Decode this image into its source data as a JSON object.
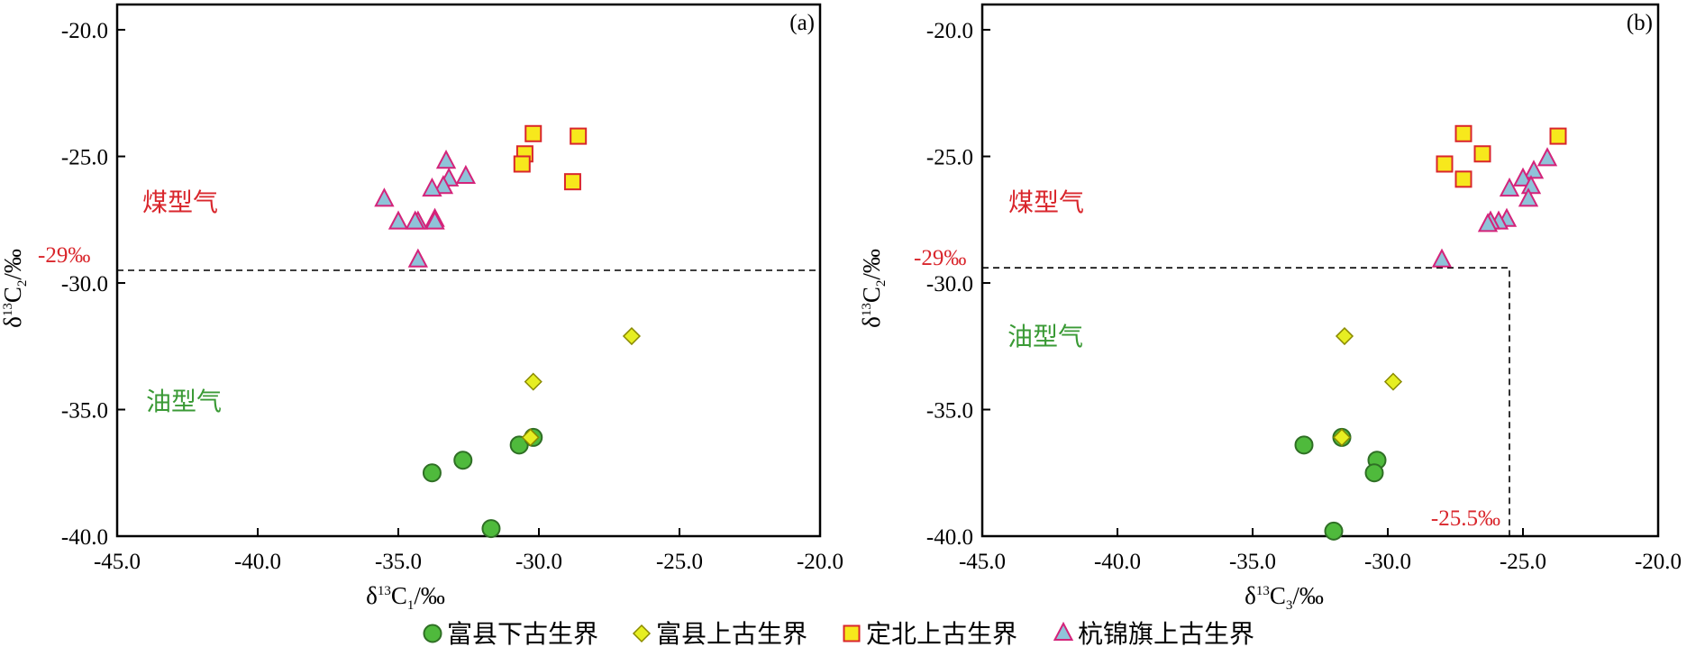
{
  "colors": {
    "axis": "#000000",
    "coal_label": "#d9262c",
    "oil_label": "#3a9a35",
    "threshold_label": "#d9262c",
    "circle_fill": "#4fba3c",
    "circle_stroke": "#2f6f25",
    "diamond_fill": "#e6ee22",
    "diamond_stroke": "#8a8a00",
    "square_fill": "#f7e81c",
    "square_stroke": "#d9262c",
    "triangle_fill": "#8fc3d9",
    "triangle_stroke": "#d4237a"
  },
  "legend": [
    {
      "key": "fx_lower",
      "label": "富县下古生界",
      "marker": "circle"
    },
    {
      "key": "fx_upper",
      "label": "富县上古生界",
      "marker": "diamond"
    },
    {
      "key": "db_upper",
      "label": "定北上古生界",
      "marker": "square"
    },
    {
      "key": "hjq_upper",
      "label": "杭锦旗上古生界",
      "marker": "triangle"
    }
  ],
  "chart_data": [
    {
      "type": "scatter",
      "panel_label": "(a)",
      "xlabel": {
        "delta": "δ",
        "sup": "13",
        "base": "C",
        "sub": "1",
        "unit": "/‰"
      },
      "ylabel": {
        "delta": "δ",
        "sup": "13",
        "base": "C",
        "sub": "2",
        "unit": "/‰"
      },
      "xlim": [
        -45,
        -20
      ],
      "ylim": [
        -40,
        -19
      ],
      "xticks": [
        -45,
        -40,
        -35,
        -30,
        -25,
        -20
      ],
      "xtick_labels": [
        "-45.0",
        "-40.0",
        "-35.0",
        "-30.0",
        "-25.0",
        "-20.0"
      ],
      "yticks": [
        -20,
        -25,
        -30,
        -35,
        -40
      ],
      "ytick_labels": [
        "-20.0",
        "-25.0",
        "-30.0",
        "-35.0",
        "-40.0"
      ],
      "threshold": {
        "y": -29.5,
        "label": "-29‰"
      },
      "region_labels": {
        "coal": "煤型气",
        "oil": "油型气"
      },
      "series": [
        {
          "key": "fx_lower",
          "points": [
            [
              -33.8,
              -37.5
            ],
            [
              -32.7,
              -37.0
            ],
            [
              -30.7,
              -36.4
            ],
            [
              -30.2,
              -36.1
            ],
            [
              -31.7,
              -39.7
            ]
          ]
        },
        {
          "key": "fx_upper",
          "points": [
            [
              -26.7,
              -32.1
            ],
            [
              -30.2,
              -33.9
            ],
            [
              -30.3,
              -36.1
            ]
          ]
        },
        {
          "key": "db_upper",
          "points": [
            [
              -30.2,
              -24.1
            ],
            [
              -28.6,
              -24.2
            ],
            [
              -30.5,
              -24.9
            ],
            [
              -30.6,
              -25.3
            ],
            [
              -28.8,
              -26.0
            ]
          ]
        },
        {
          "key": "hjq_upper",
          "points": [
            [
              -33.3,
              -25.2
            ],
            [
              -32.6,
              -25.8
            ],
            [
              -33.2,
              -25.9
            ],
            [
              -33.4,
              -26.2
            ],
            [
              -33.8,
              -26.3
            ],
            [
              -35.5,
              -26.7
            ],
            [
              -35.0,
              -27.6
            ],
            [
              -34.3,
              -27.6
            ],
            [
              -34.4,
              -27.6
            ],
            [
              -33.7,
              -27.5
            ],
            [
              -33.7,
              -27.6
            ],
            [
              -34.3,
              -29.1
            ]
          ]
        }
      ]
    },
    {
      "type": "scatter",
      "panel_label": "(b)",
      "xlabel": {
        "delta": "δ",
        "sup": "13",
        "base": "C",
        "sub": "3",
        "unit": "/‰"
      },
      "ylabel": {
        "delta": "δ",
        "sup": "13",
        "base": "C",
        "sub": "2",
        "unit": "/‰"
      },
      "xlim": [
        -45,
        -20
      ],
      "ylim": [
        -40,
        -19
      ],
      "xticks": [
        -45,
        -40,
        -35,
        -30,
        -25,
        -20
      ],
      "xtick_labels": [
        "-45.0",
        "-40.0",
        "-35.0",
        "-30.0",
        "-25.0",
        "-20.0"
      ],
      "yticks": [
        -20,
        -25,
        -30,
        -35,
        -40
      ],
      "ytick_labels": [
        "-20.0",
        "-25.0",
        "-30.0",
        "-35.0",
        "-40.0"
      ],
      "threshold": {
        "y": -29.4,
        "x": -25.5,
        "label_y": "-29‰",
        "label_x": "-25.5‰"
      },
      "region_labels": {
        "coal": "煤型气",
        "oil": "油型气"
      },
      "series": [
        {
          "key": "fx_lower",
          "points": [
            [
              -33.1,
              -36.4
            ],
            [
              -31.7,
              -36.1
            ],
            [
              -30.4,
              -37.0
            ],
            [
              -30.5,
              -37.5
            ],
            [
              -32.0,
              -39.8
            ]
          ]
        },
        {
          "key": "fx_upper",
          "points": [
            [
              -31.6,
              -32.1
            ],
            [
              -29.8,
              -33.9
            ],
            [
              -31.7,
              -36.1
            ]
          ]
        },
        {
          "key": "db_upper",
          "points": [
            [
              -27.2,
              -24.1
            ],
            [
              -23.7,
              -24.2
            ],
            [
              -26.5,
              -24.9
            ],
            [
              -27.9,
              -25.3
            ],
            [
              -27.2,
              -25.9
            ]
          ]
        },
        {
          "key": "hjq_upper",
          "points": [
            [
              -24.1,
              -25.1
            ],
            [
              -24.6,
              -25.6
            ],
            [
              -25.0,
              -25.9
            ],
            [
              -24.7,
              -26.2
            ],
            [
              -25.5,
              -26.3
            ],
            [
              -24.8,
              -26.7
            ],
            [
              -25.6,
              -27.5
            ],
            [
              -25.9,
              -27.6
            ],
            [
              -26.2,
              -27.6
            ],
            [
              -26.3,
              -27.7
            ],
            [
              -28.0,
              -29.1
            ]
          ]
        }
      ]
    }
  ]
}
